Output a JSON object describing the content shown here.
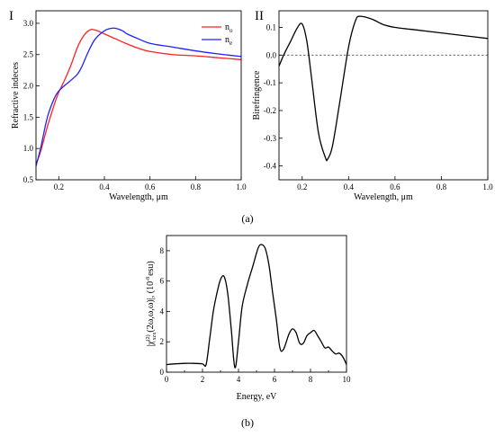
{
  "figure": {
    "caption_a": "(a)",
    "caption_b": "(b)"
  },
  "colors": {
    "n_o": "#ff2020",
    "n_e": "#2020ff",
    "line": "#000000",
    "zero_line": "#555555"
  },
  "chart_data": [
    {
      "id": "panel-I",
      "type": "line",
      "panel_label": "I",
      "title": "",
      "xlabel": "Wavelength, μm",
      "ylabel": "Refractive indeces",
      "xlim": [
        0.1,
        1.0
      ],
      "ylim": [
        0.5,
        3.2
      ],
      "xticks": [
        0.2,
        0.4,
        0.6,
        0.8,
        1.0
      ],
      "xtick_labels": [
        "0.2",
        "0.4",
        "0.6",
        "0.8",
        "1.0"
      ],
      "yticks": [
        0.5,
        1.0,
        1.5,
        2.0,
        2.5,
        3.0
      ],
      "ytick_labels": [
        "0.5",
        "1.0",
        "1.5",
        "2.0",
        "2.5",
        "3.0"
      ],
      "grid": false,
      "legend": "top-right",
      "series": [
        {
          "name": "n_o",
          "legend_main": "n",
          "legend_sub": "o",
          "color": "#ff2020",
          "x": [
            0.1,
            0.12,
            0.15,
            0.18,
            0.2,
            0.22,
            0.25,
            0.28,
            0.3,
            0.32,
            0.34,
            0.35,
            0.37,
            0.4,
            0.45,
            0.5,
            0.55,
            0.6,
            0.7,
            0.8,
            0.9,
            1.0
          ],
          "y": [
            0.75,
            0.95,
            1.35,
            1.7,
            1.9,
            2.05,
            2.3,
            2.6,
            2.75,
            2.85,
            2.9,
            2.9,
            2.88,
            2.83,
            2.75,
            2.67,
            2.6,
            2.55,
            2.5,
            2.48,
            2.45,
            2.42
          ]
        },
        {
          "name": "n_e",
          "legend_main": "n",
          "legend_sub": "e",
          "color": "#2020ff",
          "x": [
            0.1,
            0.12,
            0.15,
            0.18,
            0.2,
            0.23,
            0.25,
            0.28,
            0.3,
            0.33,
            0.36,
            0.4,
            0.43,
            0.45,
            0.48,
            0.5,
            0.55,
            0.6,
            0.7,
            0.8,
            0.9,
            1.0
          ],
          "y": [
            0.72,
            1.0,
            1.5,
            1.8,
            1.92,
            2.02,
            2.08,
            2.18,
            2.3,
            2.55,
            2.75,
            2.88,
            2.92,
            2.92,
            2.88,
            2.83,
            2.75,
            2.68,
            2.62,
            2.56,
            2.51,
            2.47
          ]
        }
      ]
    },
    {
      "id": "panel-II",
      "type": "line",
      "panel_label": "II",
      "title": "",
      "xlabel": "Wavelength, μm",
      "ylabel": "Birefringence",
      "xlim": [
        0.1,
        1.0
      ],
      "ylim": [
        -0.45,
        0.16
      ],
      "xticks": [
        0.2,
        0.4,
        0.6,
        0.8,
        1.0
      ],
      "xtick_labels": [
        "0.2",
        "0.4",
        "0.6",
        "0.8",
        "1.0"
      ],
      "yticks": [
        -0.4,
        -0.3,
        -0.2,
        -0.1,
        0.0,
        0.1
      ],
      "ytick_labels": [
        "-0.4",
        "-0.3",
        "-0.2",
        "-0.1",
        "0.0",
        "0.1"
      ],
      "grid": false,
      "reference_line_y": 0.0,
      "series": [
        {
          "color": "#000000",
          "x": [
            0.1,
            0.12,
            0.15,
            0.18,
            0.2,
            0.22,
            0.24,
            0.27,
            0.3,
            0.31,
            0.33,
            0.36,
            0.4,
            0.43,
            0.45,
            0.5,
            0.55,
            0.6,
            0.7,
            0.8,
            0.9,
            1.0
          ],
          "y": [
            -0.04,
            0.0,
            0.05,
            0.1,
            0.112,
            0.05,
            -0.08,
            -0.28,
            -0.37,
            -0.375,
            -0.33,
            -0.18,
            0.03,
            0.125,
            0.14,
            0.13,
            0.11,
            0.1,
            0.09,
            0.08,
            0.07,
            0.06
          ]
        }
      ]
    },
    {
      "id": "panel-b",
      "type": "line",
      "title": "",
      "xlabel": "Energy, eV",
      "ylabel_prefix": "|χ",
      "ylabel_sup": "(2)",
      "ylabel_sub": "xzx",
      "ylabel_rest": "(2ω,ω,ω)|, (10",
      "ylabel_sup2": "-8",
      "ylabel_end": "esu)",
      "xlim": [
        0,
        10
      ],
      "ylim": [
        0,
        9
      ],
      "xticks": [
        0,
        2,
        4,
        6,
        8,
        10
      ],
      "xtick_labels": [
        "0",
        "2",
        "4",
        "6",
        "8",
        "10"
      ],
      "yticks": [
        0,
        2,
        4,
        6,
        8
      ],
      "ytick_labels": [
        "0",
        "2",
        "4",
        "6",
        "8"
      ],
      "grid": false,
      "series": [
        {
          "color": "#000000",
          "x": [
            0,
            0.5,
            1,
            1.5,
            2,
            2.2,
            2.4,
            2.6,
            2.8,
            3.0,
            3.2,
            3.4,
            3.6,
            3.8,
            4.0,
            4.2,
            4.5,
            4.8,
            5.1,
            5.3,
            5.5,
            5.7,
            5.9,
            6.1,
            6.3,
            6.5,
            6.8,
            7.0,
            7.2,
            7.4,
            7.6,
            7.8,
            8.0,
            8.2,
            8.4,
            8.6,
            8.8,
            9.0,
            9.2,
            9.4,
            9.6,
            9.8,
            10.0
          ],
          "y": [
            0.5,
            0.55,
            0.58,
            0.58,
            0.55,
            0.5,
            2.2,
            4.0,
            5.2,
            6.1,
            6.3,
            5.2,
            2.8,
            0.3,
            2.0,
            4.3,
            5.8,
            7.0,
            8.2,
            8.4,
            8.1,
            7.0,
            5.2,
            3.5,
            1.6,
            1.5,
            2.5,
            2.85,
            2.6,
            1.9,
            1.9,
            2.4,
            2.6,
            2.75,
            2.4,
            2.0,
            1.6,
            1.65,
            1.4,
            1.2,
            1.25,
            1.0,
            0.5
          ]
        }
      ]
    }
  ]
}
